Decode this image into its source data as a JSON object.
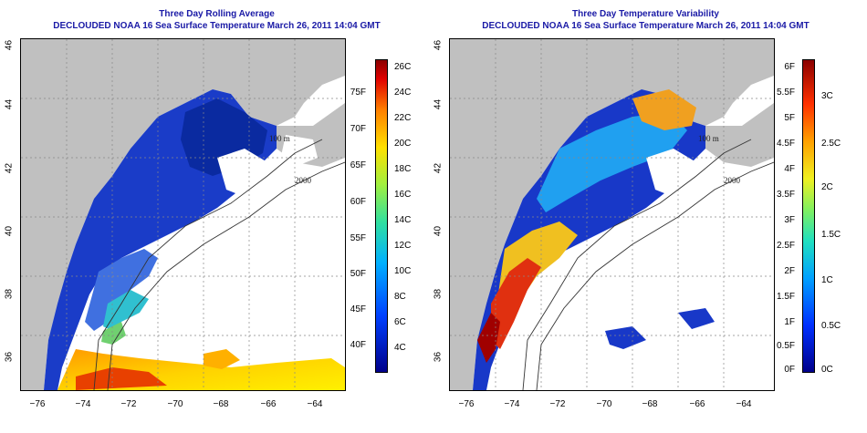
{
  "left_panel": {
    "title_line1": "Three Day Rolling Average",
    "title_line2": "DECLOUDED NOAA 16 Sea Surface Temperature March 26, 2011 14:04 GMT",
    "y_ticks": [
      "46",
      "44",
      "42",
      "40",
      "38",
      "36"
    ],
    "x_ticks": [
      "−76",
      "−74",
      "−72",
      "−70",
      "−68",
      "−66",
      "−64"
    ],
    "colorbar_f": [
      "75F",
      "70F",
      "65F",
      "60F",
      "55F",
      "50F",
      "45F",
      "40F"
    ],
    "colorbar_c": [
      "26C",
      "24C",
      "22C",
      "20C",
      "18C",
      "16C",
      "14C",
      "12C",
      "10C",
      "8C",
      "6C",
      "4C"
    ],
    "contour_labels": [
      "100 m",
      "2000",
      "100 m"
    ]
  },
  "right_panel": {
    "title_line1": "Three Day Temperature Variability",
    "title_line2": "DECLOUDED NOAA 16 Sea Surface Temperature March 26, 2011 14:04 GMT",
    "y_ticks": [
      "46",
      "44",
      "42",
      "40",
      "38",
      "36"
    ],
    "x_ticks": [
      "−76",
      "−74",
      "−72",
      "−70",
      "−68",
      "−66",
      "−64"
    ],
    "colorbar_f": [
      "6F",
      "5.5F",
      "5F",
      "4.5F",
      "4F",
      "3.5F",
      "3F",
      "2.5F",
      "2F",
      "1.5F",
      "1F",
      "0.5F",
      "0F"
    ],
    "colorbar_c": [
      "3C",
      "2.5C",
      "2C",
      "1.5C",
      "1C",
      "0.5C",
      "0C"
    ],
    "contour_labels": [
      "100 m",
      "2000",
      "100 m"
    ]
  },
  "colors": {
    "title": "#1a1aa6",
    "land": "#c0c0c0",
    "ocean_cold": "#1f3fd0",
    "scale_low": "#00008b",
    "scale_high": "#8b0000"
  }
}
